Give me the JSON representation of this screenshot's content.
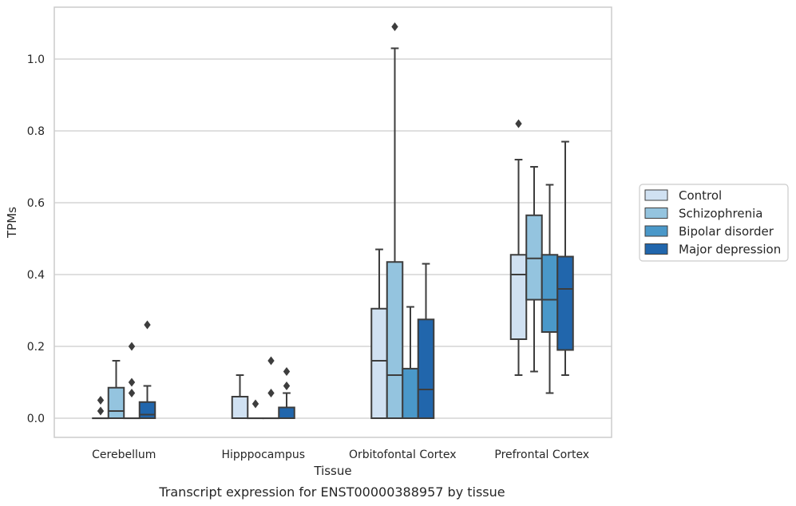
{
  "chart_data": {
    "type": "box",
    "caption": "Transcript expression for ENST00000388957 by tissue",
    "xlabel": "Tissue",
    "ylabel": "TPMs",
    "ylim": [
      -0.05,
      1.15
    ],
    "yticks": [
      0.0,
      0.2,
      0.4,
      0.6,
      0.8,
      1.0
    ],
    "ytick_labels": [
      "0.0",
      "0.2",
      "0.4",
      "0.6",
      "0.8",
      "1.0"
    ],
    "grid": true,
    "legend_position": "right",
    "categories": [
      "Cerebellum",
      "Hipppocampus",
      "Orbitofontal Cortex",
      "Prefrontal Cortex"
    ],
    "series": [
      {
        "name": "Control",
        "color": "#d0e1f2",
        "boxes": [
          {
            "whislo": 0,
            "q1": 0,
            "med": 0,
            "q3": 0,
            "whishi": 0,
            "fliers": [
              0.02,
              0.05
            ]
          },
          {
            "whislo": 0,
            "q1": 0,
            "med": 0,
            "q3": 0.06,
            "whishi": 0.12,
            "fliers": []
          },
          {
            "whislo": 0,
            "q1": 0,
            "med": 0.16,
            "q3": 0.305,
            "whishi": 0.47,
            "fliers": []
          },
          {
            "whislo": 0.12,
            "q1": 0.22,
            "med": 0.4,
            "q3": 0.455,
            "whishi": 0.72,
            "fliers": [
              0.82
            ]
          }
        ]
      },
      {
        "name": "Schizophrenia",
        "color": "#94c4df",
        "boxes": [
          {
            "whislo": 0,
            "q1": 0,
            "med": 0.02,
            "q3": 0.085,
            "whishi": 0.16,
            "fliers": []
          },
          {
            "whislo": 0,
            "q1": 0,
            "med": 0,
            "q3": 0,
            "whishi": 0,
            "fliers": [
              0.04
            ]
          },
          {
            "whislo": 0,
            "q1": 0,
            "med": 0.12,
            "q3": 0.435,
            "whishi": 1.03,
            "fliers": [
              1.09
            ]
          },
          {
            "whislo": 0.13,
            "q1": 0.33,
            "med": 0.445,
            "q3": 0.565,
            "whishi": 0.7,
            "fliers": []
          }
        ]
      },
      {
        "name": "Bipolar disorder",
        "color": "#4a98c9",
        "boxes": [
          {
            "whislo": 0,
            "q1": 0,
            "med": 0,
            "q3": 0,
            "whishi": 0,
            "fliers": [
              0.07,
              0.1,
              0.2
            ]
          },
          {
            "whislo": 0,
            "q1": 0,
            "med": 0,
            "q3": 0,
            "whishi": 0,
            "fliers": [
              0.07,
              0.16
            ]
          },
          {
            "whislo": 0,
            "q1": 0,
            "med": 0,
            "q3": 0.138,
            "whishi": 0.31,
            "fliers": []
          },
          {
            "whislo": 0.07,
            "q1": 0.24,
            "med": 0.33,
            "q3": 0.455,
            "whishi": 0.65,
            "fliers": []
          }
        ]
      },
      {
        "name": "Major depression",
        "color": "#2166ac",
        "boxes": [
          {
            "whislo": 0,
            "q1": 0,
            "med": 0.01,
            "q3": 0.045,
            "whishi": 0.09,
            "fliers": [
              0.26
            ]
          },
          {
            "whislo": 0,
            "q1": 0,
            "med": 0,
            "q3": 0.03,
            "whishi": 0.07,
            "fliers": [
              0.09,
              0.13
            ]
          },
          {
            "whislo": 0,
            "q1": 0,
            "med": 0.08,
            "q3": 0.275,
            "whishi": 0.43,
            "fliers": []
          },
          {
            "whislo": 0.12,
            "q1": 0.19,
            "med": 0.36,
            "q3": 0.45,
            "whishi": 0.77,
            "fliers": []
          }
        ]
      }
    ],
    "colors": {
      "axes_edge": "#cccccc",
      "grid": "#cccccc",
      "box_edge": "#3d3d3d",
      "text": "#262626"
    }
  }
}
